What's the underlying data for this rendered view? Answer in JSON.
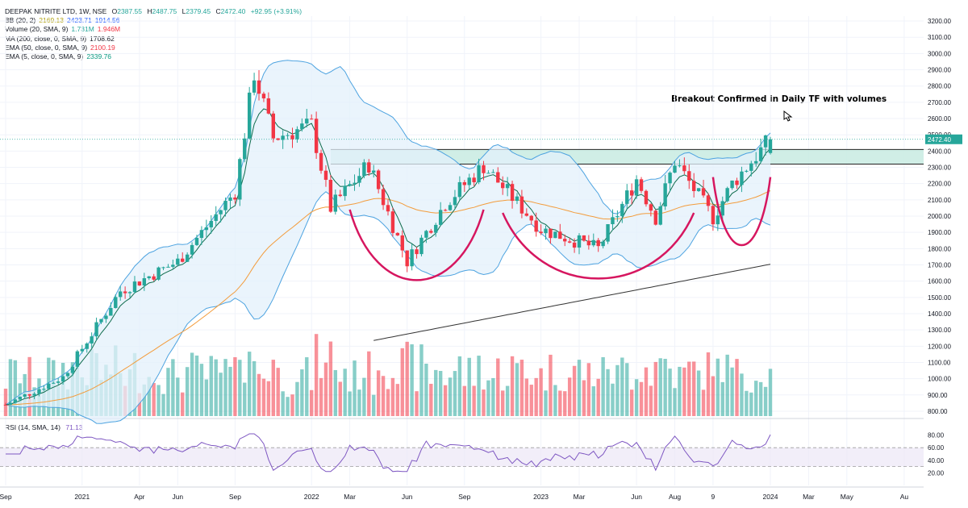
{
  "header": {
    "symbol": "DEEPAK NITRITE LTD, 1W, NSE",
    "ohlc": [
      {
        "label": "O",
        "value": "2387.55"
      },
      {
        "label": "H",
        "value": "2487.75"
      },
      {
        "label": "L",
        "value": "2379.45"
      },
      {
        "label": "C",
        "value": "2472.40"
      }
    ],
    "change": "+92.95 (+3.91%)"
  },
  "indicators": [
    {
      "name": "BB (20, 2)",
      "values": [
        "2169.13",
        "2423.71",
        "1914.56"
      ],
      "colors": [
        "#b2a313",
        "#2962ff",
        "#2962ff"
      ]
    },
    {
      "name": "Volume (20, SMA, 9)",
      "values": [
        "1.731M",
        "1.946M"
      ],
      "colors": [
        "#26a69a",
        "#f23645"
      ]
    },
    {
      "name": "MA (200, close, 0, SMA, 9)",
      "values": [
        "1708.62"
      ],
      "colors": [
        "#131722"
      ]
    },
    {
      "name": "EMA (50, close, 0, SMA, 9)",
      "values": [
        "2100.19"
      ],
      "colors": [
        "#f23645"
      ]
    },
    {
      "name": "EMA (5, close, 0, SMA, 9)",
      "values": [
        "2339.76"
      ],
      "colors": [
        "#089981"
      ]
    }
  ],
  "rsi": {
    "label": "RSI (14, SMA, 14)",
    "value": "71.13",
    "axis_ticks": [
      "80.00",
      "60.00",
      "40.00",
      "20.00"
    ],
    "tick_values": [
      80,
      60,
      40,
      20
    ]
  },
  "annotation": "Breakout Confirmed in Daily TF with volumes",
  "colors": {
    "up": "#26a69a",
    "down": "#f23645",
    "bb": "#4da3e0",
    "bb_fill": "#e3f0fb",
    "zone": "#c8ebe2",
    "arc": "#d6165f",
    "ma200": "#333333",
    "ema50": "#f39c3c",
    "ema5": "#0e6b4c",
    "vol_ma": "#c2185b"
  },
  "chart_data": {
    "type": "candlestick",
    "title": "DEEPAK NITRITE LTD, 1W, NSE",
    "y_ticks": [
      3200,
      3100,
      3000,
      2900,
      2800,
      2700,
      2600,
      2500,
      2400,
      2300,
      2200,
      2100,
      2000,
      1900,
      1800,
      1700,
      1600,
      1500,
      1400,
      1300,
      1200,
      1100,
      1000,
      900,
      800
    ],
    "y_tick_labels": [
      "3200.00",
      "3100.00",
      "3000.00",
      "2900.00",
      "2800.00",
      "2700.00",
      "2600.00",
      "2500.00",
      "2400.00",
      "2300.00",
      "2200.00",
      "2100.00",
      "2000.00",
      "1900.00",
      "1800.00",
      "1700.00",
      "1600.00",
      "1500.00",
      "1400.00",
      "1300.00",
      "1200.00",
      "1100.00",
      "1000.00",
      "900.00",
      "800.00"
    ],
    "ylim": [
      780,
      3230
    ],
    "last_price": 2472.4,
    "last_price_label": "2472.40",
    "x_labels": [
      "Sep",
      "2021",
      "Apr",
      "Jun",
      "Sep",
      "2022",
      "Mar",
      "Jun",
      "Sep",
      "2023",
      "Mar",
      "Jun",
      "Aug",
      "9",
      "2024",
      "Mar",
      "May",
      "Au"
    ],
    "x_label_dates": [
      "2020-09",
      "2021-01",
      "2021-04",
      "2021-06",
      "2021-09",
      "2022-01",
      "2022-03",
      "2022-06",
      "2022-09",
      "2023-01",
      "2023-03",
      "2023-06",
      "2023-08",
      "2023-10",
      "2024-01",
      "2024-03",
      "2024-05",
      "2024-08"
    ],
    "resistance_zone": [
      2320,
      2410
    ],
    "key_levels": [
      {
        "date": "2020-09",
        "close": 840
      },
      {
        "date": "2020-12",
        "close": 1010
      },
      {
        "date": "2021-03",
        "close": 1540
      },
      {
        "date": "2021-06",
        "close": 1720
      },
      {
        "date": "2021-09",
        "close": 2150
      },
      {
        "date": "2021-10",
        "close": 2880
      },
      {
        "date": "2021-11",
        "close": 2480
      },
      {
        "date": "2022-01",
        "close": 2560
      },
      {
        "date": "2022-02",
        "close": 2050
      },
      {
        "date": "2022-04",
        "close": 2320
      },
      {
        "date": "2022-06",
        "close": 1720
      },
      {
        "date": "2022-08",
        "close": 2080
      },
      {
        "date": "2022-10",
        "close": 2310
      },
      {
        "date": "2022-11",
        "close": 2180
      },
      {
        "date": "2023-01",
        "close": 1920
      },
      {
        "date": "2023-04",
        "close": 1800
      },
      {
        "date": "2023-06",
        "close": 2230
      },
      {
        "date": "2023-07",
        "close": 1990
      },
      {
        "date": "2023-08",
        "close": 2340
      },
      {
        "date": "2023-10",
        "close": 1990
      },
      {
        "date": "2023-11",
        "close": 2200
      },
      {
        "date": "2024-01",
        "close": 2472.4
      }
    ]
  }
}
